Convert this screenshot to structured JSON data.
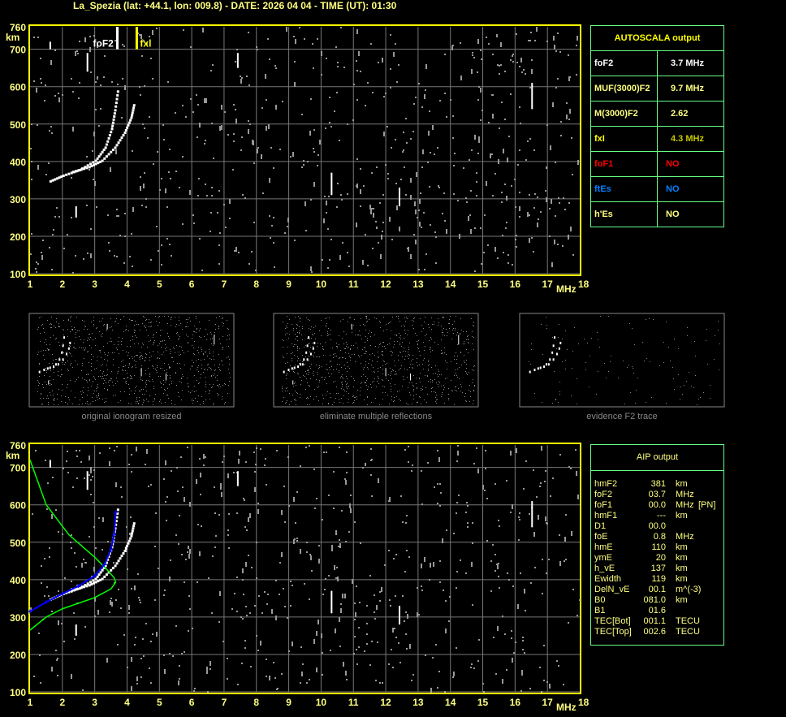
{
  "header": {
    "title": "La_Spezia (lat: +44.1, lon: 009.8) - DATE: 2026 04 04 - TIME (UT): 01:30"
  },
  "chart_data": [
    {
      "type": "scatter",
      "name": "ionogram",
      "xlabel": "MHz",
      "ylabel": "km",
      "xlim": [
        1,
        18
      ],
      "ylim": [
        100,
        760
      ],
      "xticks": [
        "1",
        "2",
        "3",
        "4",
        "5",
        "6",
        "7",
        "8",
        "9",
        "10",
        "11",
        "12",
        "13",
        "14",
        "15",
        "16",
        "17",
        "18"
      ],
      "yticks": [
        "100",
        "200",
        "300",
        "400",
        "500",
        "600",
        "700",
        "760"
      ],
      "grid": true,
      "markers": [
        {
          "label": "foF2",
          "x": 3.7,
          "color": "#ffffff"
        },
        {
          "label": "fxl",
          "x": 4.3,
          "color": "#ffff00"
        }
      ],
      "traces": {
        "o_trace": [
          [
            1.6,
            350
          ],
          [
            2.0,
            365
          ],
          [
            2.5,
            380
          ],
          [
            3.0,
            405
          ],
          [
            3.3,
            440
          ],
          [
            3.5,
            490
          ],
          [
            3.6,
            540
          ],
          [
            3.7,
            600
          ]
        ],
        "x_trace": [
          [
            2.3,
            375
          ],
          [
            2.8,
            388
          ],
          [
            3.2,
            405
          ],
          [
            3.6,
            440
          ],
          [
            3.9,
            480
          ],
          [
            4.1,
            520
          ],
          [
            4.2,
            560
          ]
        ]
      }
    },
    {
      "type": "scatter",
      "name": "aip",
      "xlabel": "MHz",
      "ylabel": "km",
      "xlim": [
        1,
        18
      ],
      "ylim": [
        100,
        760
      ],
      "xticks": [
        "1",
        "2",
        "3",
        "4",
        "5",
        "6",
        "7",
        "8",
        "9",
        "10",
        "11",
        "12",
        "13",
        "14",
        "15",
        "16",
        "17",
        "18"
      ],
      "yticks": [
        "100",
        "200",
        "300",
        "400",
        "500",
        "600",
        "700",
        "760"
      ],
      "grid": true,
      "fitted_trace": {
        "color": "#0000ff",
        "points": [
          [
            1.0,
            315
          ],
          [
            1.5,
            340
          ],
          [
            2.0,
            362
          ],
          [
            2.5,
            383
          ],
          [
            3.0,
            410
          ],
          [
            3.3,
            440
          ],
          [
            3.5,
            480
          ],
          [
            3.6,
            520
          ],
          [
            3.65,
            580
          ]
        ]
      },
      "profile": {
        "color": "#00ff00",
        "points": [
          [
            1.0,
            720
          ],
          [
            1.5,
            600
          ],
          [
            2.2,
            520
          ],
          [
            3.0,
            460
          ],
          [
            3.4,
            425
          ],
          [
            3.6,
            405
          ],
          [
            3.65,
            393
          ],
          [
            3.5,
            375
          ],
          [
            3.0,
            352
          ],
          [
            2.0,
            322
          ],
          [
            1.5,
            300
          ],
          [
            1.0,
            265
          ]
        ]
      }
    }
  ],
  "thumbnails": [
    {
      "caption": "original ionogram resized"
    },
    {
      "caption": "eliminate multiple reflections"
    },
    {
      "caption": "evidence F2 trace"
    }
  ],
  "autoscala": {
    "title": "AUTOSCALA output",
    "rows": [
      {
        "label": "foF2",
        "value": "3.7 MHz",
        "color": "#ffffff",
        "vcolor": "#ffffff"
      },
      {
        "label": "MUF(3000)F2",
        "value": "9.7 MHz",
        "color": "#ffff80",
        "vcolor": "#ffff80"
      },
      {
        "label": "M(3000)F2",
        "value": "2.62",
        "color": "#ffff80",
        "vcolor": "#ffff80"
      },
      {
        "label": "fxI",
        "value": "4.3 MHz",
        "color": "#ffff00",
        "vcolor": "#c8c800"
      },
      {
        "label": "foF1",
        "value": "NO",
        "color": "#ff0000",
        "vcolor": "#ff0000"
      },
      {
        "label": "ftEs",
        "value": "NO",
        "color": "#0080ff",
        "vcolor": "#0080ff"
      },
      {
        "label": "h'Es",
        "value": "NO",
        "color": "#ffff80",
        "vcolor": "#ffff80"
      }
    ]
  },
  "aip": {
    "title": "AIP output",
    "rows": [
      [
        "hmF2",
        "381",
        "km",
        ""
      ],
      [
        "foF2",
        "03.7",
        "MHz",
        ""
      ],
      [
        "foF1",
        "00.0",
        "MHz",
        "[PN]"
      ],
      [
        "hmF1",
        "---",
        "km",
        ""
      ],
      [
        "D1",
        "00.0",
        "",
        ""
      ],
      [
        "foE",
        "0.8",
        "MHz",
        ""
      ],
      [
        "hmE",
        "110",
        "km",
        ""
      ],
      [
        "ymE",
        "20",
        "km",
        ""
      ],
      [
        "h_vE",
        "137",
        "km",
        ""
      ],
      [
        "Ewidth",
        "119",
        "km",
        ""
      ],
      [
        "DelN_vE",
        "00.1",
        "m^(-3)",
        ""
      ],
      [
        "B0",
        "081.0",
        "km",
        ""
      ],
      [
        "B1",
        "01.6",
        "",
        ""
      ],
      [
        "TEC[Bot]",
        "001.1",
        "TECU",
        ""
      ],
      [
        "TEC[Top]",
        "002.6",
        "TECU",
        ""
      ]
    ]
  }
}
